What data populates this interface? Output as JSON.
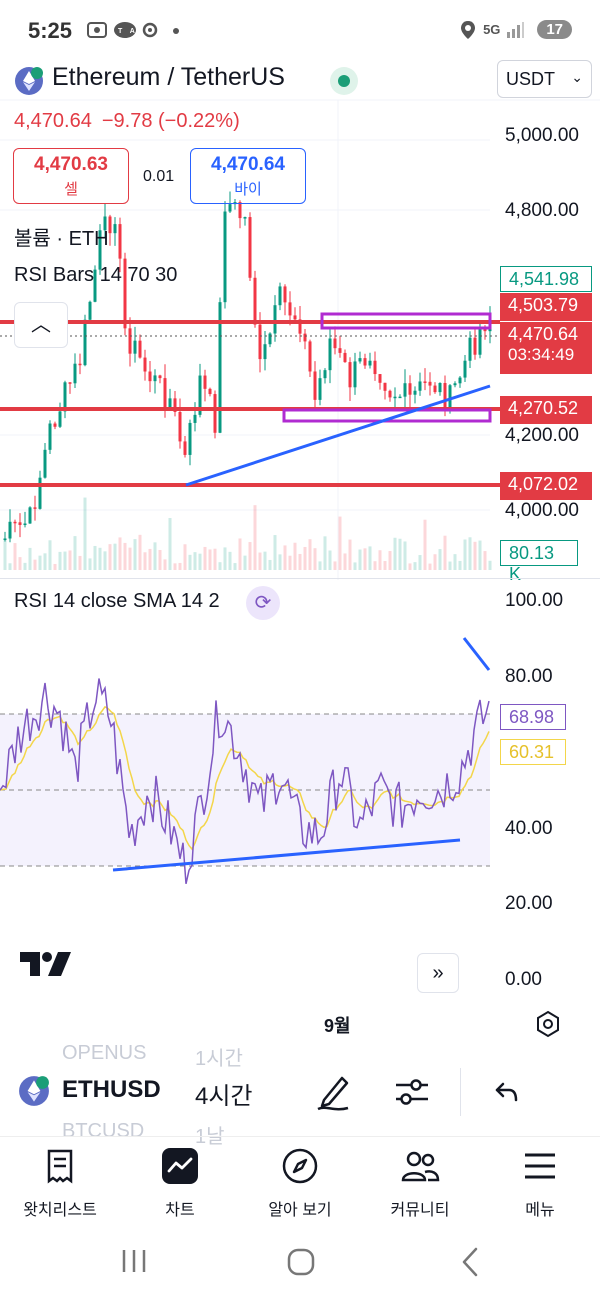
{
  "status_bar": {
    "time": "5:25",
    "left_icons": [
      "screen-record-icon",
      "talk-icon",
      "ring-icon",
      "dot-icon"
    ],
    "network": "5G",
    "battery": "17"
  },
  "header": {
    "title": "Ethereum / TetherUS",
    "currency": "USDT"
  },
  "quote": {
    "price": "4,470.64",
    "change": "−9.78 (−0.22%)"
  },
  "trade": {
    "sell_price": "4,470.63",
    "sell_label": "셀",
    "spread": "0.01",
    "buy_price": "4,470.64",
    "buy_label": "바이"
  },
  "indicators": {
    "volume": "볼륨 · ETH",
    "rsi_bars": "RSI Bars 14 70 30",
    "rsi": "RSI 14 close SMA 14 2"
  },
  "price_axis": [
    "5,000.00",
    "4,800.00",
    "4,200.00",
    "4,000.00"
  ],
  "price_tags": {
    "t1": "4,541.98",
    "t2": "4,503.79",
    "t3": "4,470.64",
    "t3_timer": "03:34:49",
    "t4": "4,270.52",
    "t5": "4,072.02",
    "volume": "80.13 K"
  },
  "rsi_axis": [
    "100.00",
    "80.00",
    "40.00",
    "20.00",
    "0.00"
  ],
  "rsi_tags": {
    "rsi": "68.98",
    "sma": "60.31"
  },
  "time_axis": {
    "month": "9월"
  },
  "toolbar": {
    "symbol": "ETHUSD",
    "interval": "4시간",
    "ghost_above_symbol": "OPENUS",
    "ghost_above_interval": "1시간",
    "ghost_below_symbol": "BTCUSD",
    "ghost_below_interval": "1날"
  },
  "bottom_nav": {
    "watchlist": "왓치리스트",
    "chart": "차트",
    "explore": "알아 보기",
    "community": "커뮤니티",
    "menu": "메뉴"
  },
  "colors": {
    "accent_red": "#e23b44",
    "accent_blue": "#2962ff",
    "rsi_purple": "#7e57c2",
    "sma_yellow": "#f3d64a",
    "up_green": "#089981",
    "down_red": "#f23645"
  }
}
